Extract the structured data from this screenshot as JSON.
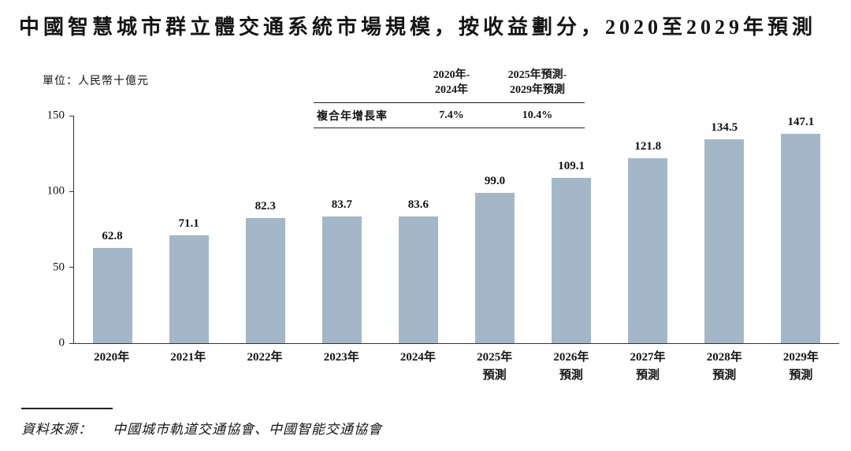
{
  "title": "中國智慧城市群立體交通系統市場規模，按收益劃分，2020至2029年預測",
  "unit_label": "單位：人民幣十億元",
  "cagr": {
    "row_label": "複合年增長率",
    "columns": [
      {
        "header_line1": "2020年-",
        "header_line2": "2024年",
        "value": "7.4%"
      },
      {
        "header_line1": "2025年預測-",
        "header_line2": "2029年預測",
        "value": "10.4%"
      }
    ]
  },
  "source": {
    "label": "資料來源：",
    "text": "中國城市軌道交通協會、中國智能交通協會"
  },
  "chart_data": {
    "type": "bar",
    "title": "中國智慧城市群立體交通系統市場規模，按收益劃分，2020至2029年預測",
    "ylabel": "人民幣十億元",
    "categories": [
      "2020年",
      "2021年",
      "2022年",
      "2023年",
      "2024年",
      "2025年",
      "2026年",
      "2027年",
      "2028年",
      "2029年"
    ],
    "category_sublabels": [
      "",
      "",
      "",
      "",
      "",
      "預測",
      "預測",
      "預測",
      "預測",
      "預測"
    ],
    "values": [
      62.8,
      71.1,
      82.3,
      83.7,
      83.6,
      99.0,
      109.1,
      121.8,
      134.5,
      147.1
    ],
    "ylim": [
      0,
      150
    ],
    "yticks": [
      0,
      50,
      100,
      150
    ],
    "grid": false,
    "legend": "none",
    "bar_color": "#a3b7c9",
    "annotations": {
      "cagr_2020_2024": "7.4%",
      "cagr_2025f_2029f": "10.4%"
    }
  }
}
